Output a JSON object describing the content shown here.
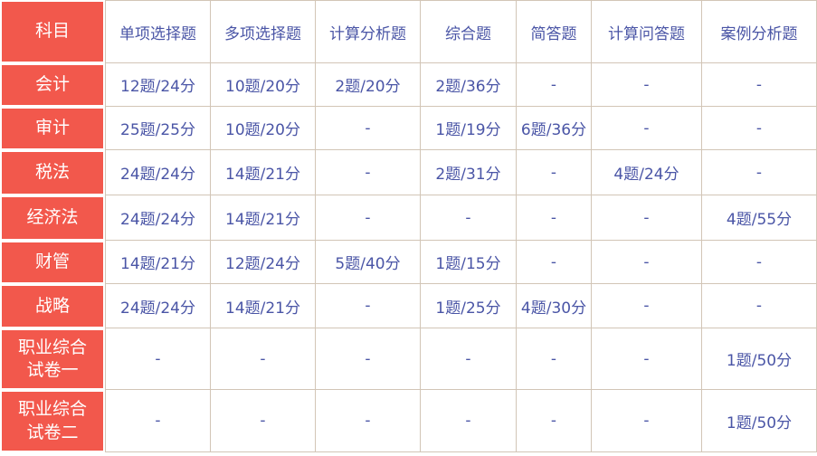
{
  "table": {
    "corner_label": "科目",
    "header": [
      "单项选择题",
      "多项选择题",
      "计算分析题",
      "综合题",
      "简答题",
      "计算问答题",
      "案例分析题"
    ],
    "rows": [
      {
        "subject": "会计",
        "cells": [
          "12题/24分",
          "10题/20分",
          "2题/20分",
          "2题/36分",
          "-",
          "-",
          "-"
        ]
      },
      {
        "subject": "审计",
        "cells": [
          "25题/25分",
          "10题/20分",
          "-",
          "1题/19分",
          "6题/36分",
          "-",
          "-"
        ]
      },
      {
        "subject": "税法",
        "cells": [
          "24题/24分",
          "14题/21分",
          "-",
          "2题/31分",
          "-",
          "4题/24分",
          "-"
        ]
      },
      {
        "subject": "经济法",
        "cells": [
          "24题/24分",
          "14题/21分",
          "-",
          "-",
          "-",
          "-",
          "4题/55分"
        ]
      },
      {
        "subject": "财管",
        "cells": [
          "14题/21分",
          "12题/24分",
          "5题/40分",
          "1题/15分",
          "-",
          "-",
          "-"
        ]
      },
      {
        "subject": "战略",
        "cells": [
          "24题/24分",
          "14题/21分",
          "-",
          "1题/25分",
          "4题/30分",
          "-",
          "-"
        ]
      },
      {
        "subject": "职业综合试卷一",
        "cells": [
          "-",
          "-",
          "-",
          "-",
          "-",
          "-",
          "1题/50分"
        ]
      },
      {
        "subject": "职业综合试卷二",
        "cells": [
          "-",
          "-",
          "-",
          "-",
          "-",
          "-",
          "1题/50分"
        ]
      }
    ],
    "colors": {
      "accent_red": "#f2584c",
      "text_blue": "#4a55a6",
      "border_tan": "#d2c5b6",
      "subject_text": "#ffffff",
      "background": "#ffffff"
    }
  },
  "chart_data": {
    "type": "table",
    "title": "",
    "columns": [
      "科目",
      "单项选择题",
      "多项选择题",
      "计算分析题",
      "综合题",
      "简答题",
      "计算问答题",
      "案例分析题"
    ],
    "rows": [
      [
        "会计",
        "12题/24分",
        "10题/20分",
        "2题/20分",
        "2题/36分",
        "-",
        "-",
        "-"
      ],
      [
        "审计",
        "25题/25分",
        "10题/20分",
        "-",
        "1题/19分",
        "6题/36分",
        "-",
        "-"
      ],
      [
        "税法",
        "24题/24分",
        "14题/21分",
        "-",
        "2题/31分",
        "-",
        "4题/24分",
        "-"
      ],
      [
        "经济法",
        "24题/24分",
        "14题/21分",
        "-",
        "-",
        "-",
        "-",
        "4题/55分"
      ],
      [
        "财管",
        "14题/21分",
        "12题/24分",
        "5题/40分",
        "1题/15分",
        "-",
        "-",
        "-"
      ],
      [
        "战略",
        "24题/24分",
        "14题/21分",
        "-",
        "1题/25分",
        "4题/30分",
        "-",
        "-"
      ],
      [
        "职业综合试卷一",
        "-",
        "-",
        "-",
        "-",
        "-",
        "-",
        "1题/50分"
      ],
      [
        "职业综合试卷二",
        "-",
        "-",
        "-",
        "-",
        "-",
        "-",
        "1题/50分"
      ]
    ]
  }
}
